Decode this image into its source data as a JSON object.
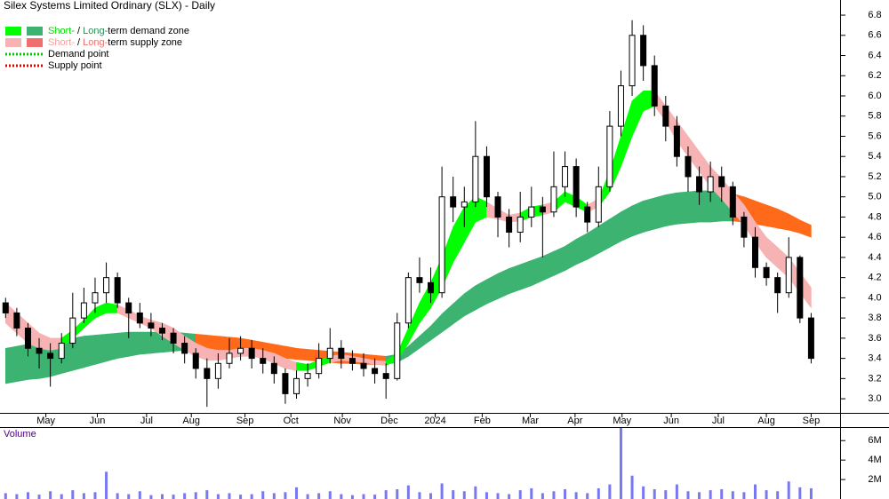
{
  "chart_data": {
    "type": "candlestick",
    "title": "Silex Systems Limited Ordinary (SLX) - Daily",
    "legend": [
      {
        "swatches": [
          "#00ff00",
          "#3cb371"
        ],
        "parts": [
          {
            "text": "Short-",
            "color": "#00dd00"
          },
          {
            "text": " / "
          },
          {
            "text": "Long-",
            "color": "#2e8b57"
          },
          {
            "text": "term demand zone"
          }
        ]
      },
      {
        "swatches": [
          "#f7b3b3",
          "#f07070"
        ],
        "parts": [
          {
            "text": "Short-",
            "color": "#f4a0a0"
          },
          {
            "text": " / "
          },
          {
            "text": "Long-",
            "color": "#f07070"
          },
          {
            "text": "term supply zone"
          }
        ]
      },
      {
        "line_color": "#00cc00",
        "parts": [
          {
            "text": "Demand point"
          }
        ]
      },
      {
        "line_color": "#dd0000",
        "parts": [
          {
            "text": "Supply point"
          }
        ]
      }
    ],
    "xlim": [
      -0.5,
      73
    ],
    "xticks": [
      {
        "value": 3.6,
        "label": "May"
      },
      {
        "value": 8.2,
        "label": "Jun"
      },
      {
        "value": 12.6,
        "label": "Jul"
      },
      {
        "value": 16.6,
        "label": "Aug"
      },
      {
        "value": 21.4,
        "label": "Sep"
      },
      {
        "value": 25.5,
        "label": "Oct"
      },
      {
        "value": 30.1,
        "label": "Nov"
      },
      {
        "value": 34.3,
        "label": "Dec"
      },
      {
        "value": 38.4,
        "label": "2024"
      },
      {
        "value": 42.6,
        "label": "Feb"
      },
      {
        "value": 46.9,
        "label": "Mar"
      },
      {
        "value": 50.9,
        "label": "Apr"
      },
      {
        "value": 55.1,
        "label": "May"
      },
      {
        "value": 59.5,
        "label": "Jun"
      },
      {
        "value": 63.7,
        "label": "Jul"
      },
      {
        "value": 68,
        "label": "Aug"
      },
      {
        "value": 72,
        "label": "Sep"
      }
    ],
    "ylim": [
      2.86,
      6.95
    ],
    "yticks": [
      {
        "value": 3,
        "label": "3.0"
      },
      3.2,
      3.4,
      3.6,
      3.8,
      {
        "value": 4,
        "label": "4.0"
      },
      4.2,
      4.4,
      4.6,
      4.8,
      {
        "value": 5,
        "label": "5.0"
      },
      5.2,
      5.4,
      5.6,
      5.8,
      {
        "value": 6,
        "label": "6.0"
      },
      6.2,
      6.4,
      6.6,
      6.8
    ],
    "candle_up_color": "#ffffff",
    "candle_down_color": "#000000",
    "open": [
      3.95,
      3.85,
      3.7,
      3.5,
      3.45,
      3.4,
      3.55,
      3.8,
      3.95,
      4.05,
      4.2,
      3.95,
      3.85,
      3.75,
      3.7,
      3.65,
      3.55,
      3.45,
      3.3,
      3.2,
      3.35,
      3.45,
      3.5,
      3.4,
      3.35,
      3.25,
      3.05,
      3.2,
      3.25,
      3.4,
      3.5,
      3.4,
      3.35,
      3.3,
      3.25,
      3.2,
      3.75,
      4.2,
      4.15,
      4.05,
      5.0,
      4.9,
      4.95,
      5.4,
      5.0,
      4.8,
      4.65,
      4.8,
      4.9,
      4.85,
      5.1,
      5.3,
      4.9,
      4.75,
      5.1,
      5.7,
      6.1,
      6.6,
      6.3,
      5.9,
      5.7,
      5.4,
      5.2,
      5.05,
      5.2,
      5.1,
      4.8,
      4.6,
      4.3,
      4.2,
      4.05,
      4.4,
      3.8
    ],
    "high": [
      4.0,
      3.9,
      3.75,
      3.6,
      3.55,
      3.65,
      4.05,
      4.1,
      4.2,
      4.35,
      4.25,
      4.0,
      3.95,
      3.85,
      3.75,
      3.7,
      3.62,
      3.5,
      3.4,
      3.45,
      3.6,
      3.62,
      3.58,
      3.5,
      3.42,
      3.3,
      3.28,
      3.35,
      3.55,
      3.7,
      3.58,
      3.48,
      3.45,
      3.4,
      3.35,
      3.85,
      4.25,
      4.4,
      4.3,
      5.3,
      5.2,
      5.1,
      5.75,
      5.5,
      5.05,
      4.88,
      5.05,
      5.1,
      5.0,
      5.45,
      5.45,
      5.38,
      4.95,
      5.3,
      5.85,
      6.25,
      6.75,
      6.7,
      6.4,
      6.0,
      5.8,
      5.5,
      5.3,
      5.35,
      5.3,
      5.15,
      4.85,
      4.7,
      4.35,
      4.25,
      4.6,
      4.42,
      3.85
    ],
    "low": [
      3.8,
      3.62,
      3.42,
      3.3,
      3.12,
      3.35,
      3.5,
      3.75,
      3.85,
      3.95,
      3.9,
      3.6,
      3.7,
      3.62,
      3.58,
      3.45,
      3.35,
      3.2,
      2.92,
      3.1,
      3.3,
      3.38,
      3.3,
      3.25,
      3.15,
      2.95,
      3.0,
      3.12,
      3.2,
      3.35,
      3.3,
      3.28,
      3.22,
      3.15,
      3.0,
      3.18,
      3.7,
      4.05,
      3.95,
      4.0,
      4.75,
      4.7,
      4.9,
      4.9,
      4.6,
      4.5,
      4.55,
      4.7,
      4.4,
      4.8,
      5.0,
      4.8,
      4.65,
      4.7,
      5.05,
      5.6,
      6.0,
      6.15,
      5.8,
      5.55,
      5.3,
      5.05,
      4.92,
      4.95,
      4.95,
      4.72,
      4.5,
      4.2,
      4.12,
      3.85,
      4.0,
      3.75,
      3.35
    ],
    "close": [
      3.85,
      3.7,
      3.5,
      3.45,
      3.4,
      3.55,
      3.8,
      3.95,
      4.05,
      4.2,
      3.95,
      3.85,
      3.75,
      3.7,
      3.65,
      3.55,
      3.45,
      3.3,
      3.2,
      3.35,
      3.45,
      3.5,
      3.4,
      3.35,
      3.25,
      3.05,
      3.2,
      3.25,
      3.4,
      3.5,
      3.4,
      3.35,
      3.3,
      3.25,
      3.2,
      3.75,
      4.2,
      4.15,
      4.05,
      5.0,
      4.9,
      4.95,
      5.4,
      5.0,
      4.8,
      4.65,
      4.8,
      4.9,
      4.85,
      5.1,
      5.3,
      4.9,
      4.75,
      5.1,
      5.7,
      6.1,
      6.6,
      6.3,
      5.9,
      5.7,
      5.4,
      5.2,
      5.05,
      5.2,
      5.1,
      4.8,
      4.6,
      4.3,
      4.2,
      4.05,
      4.4,
      3.8,
      3.4
    ],
    "zones": [
      {
        "lower": [
          3.15,
          3.17,
          3.19,
          3.2,
          3.22,
          3.25,
          3.28,
          3.31,
          3.34,
          3.37,
          3.4,
          3.42,
          3.44,
          3.45,
          3.46,
          3.47,
          3.48,
          3.48,
          3.47,
          3.46,
          3.45,
          3.44,
          3.43,
          3.42,
          3.41,
          3.4,
          3.39,
          3.38,
          3.37,
          3.36,
          3.35,
          3.35,
          3.34,
          3.34,
          3.34,
          3.36,
          3.42,
          3.5,
          3.58,
          3.66,
          3.74,
          3.82,
          3.88,
          3.94,
          3.99,
          4.04,
          4.08,
          4.12,
          4.17,
          4.22,
          4.27,
          4.33,
          4.38,
          4.44,
          4.5,
          4.56,
          4.61,
          4.65,
          4.68,
          4.71,
          4.73,
          4.74,
          4.75,
          4.75,
          4.76,
          4.76,
          4.75,
          4.73,
          4.71,
          4.69,
          4.67,
          4.64,
          4.6
        ],
        "upper": [
          3.5,
          3.52,
          3.54,
          3.55,
          3.56,
          3.58,
          3.6,
          3.62,
          3.63,
          3.64,
          3.65,
          3.66,
          3.66,
          3.66,
          3.66,
          3.66,
          3.65,
          3.64,
          3.63,
          3.62,
          3.61,
          3.6,
          3.58,
          3.56,
          3.54,
          3.52,
          3.5,
          3.49,
          3.48,
          3.47,
          3.46,
          3.45,
          3.44,
          3.43,
          3.42,
          3.44,
          3.52,
          3.62,
          3.72,
          3.84,
          3.94,
          4.04,
          4.12,
          4.18,
          4.24,
          4.29,
          4.33,
          4.37,
          4.41,
          4.46,
          4.51,
          4.58,
          4.64,
          4.71,
          4.78,
          4.85,
          4.91,
          4.96,
          4.99,
          5.02,
          5.04,
          5.05,
          5.06,
          5.06,
          5.05,
          5.03,
          5.0,
          4.96,
          4.92,
          4.88,
          4.83,
          4.77,
          4.72
        ],
        "colors": [
          "#3cb371",
          "#3cb371",
          "#3cb371",
          "#3cb371",
          "#3cb371",
          "#3cb371",
          "#3cb371",
          "#3cb371",
          "#3cb371",
          "#3cb371",
          "#3cb371",
          "#3cb371",
          "#3cb371",
          "#3cb371",
          "#3cb371",
          "#3cb371",
          "#3cb371",
          "#ff6a1a",
          "#ff6a1a",
          "#ff6a1a",
          "#ff6a1a",
          "#ff6a1a",
          "#ff6a1a",
          "#ff6a1a",
          "#ff6a1a",
          "#ff6a1a",
          "#ff6a1a",
          "#ff6a1a",
          "#ff6a1a",
          "#ff6a1a",
          "#ff6a1a",
          "#ff6a1a",
          "#ff6a1a",
          "#ff6a1a",
          "#3cb371",
          "#3cb371",
          "#3cb371",
          "#3cb371",
          "#3cb371",
          "#3cb371",
          "#3cb371",
          "#3cb371",
          "#3cb371",
          "#3cb371",
          "#3cb371",
          "#3cb371",
          "#3cb371",
          "#3cb371",
          "#3cb371",
          "#3cb371",
          "#3cb371",
          "#3cb371",
          "#3cb371",
          "#3cb371",
          "#3cb371",
          "#3cb371",
          "#3cb371",
          "#3cb371",
          "#3cb371",
          "#3cb371",
          "#3cb371",
          "#3cb371",
          "#3cb371",
          "#3cb371",
          "#3cb371",
          "#ff6a1a",
          "#ff6a1a",
          "#ff6a1a",
          "#ff6a1a",
          "#ff6a1a",
          "#ff6a1a",
          "#ff6a1a",
          "#ff6a1a"
        ]
      },
      {
        "lower": [
          3.75,
          3.65,
          3.55,
          3.5,
          3.48,
          3.5,
          3.6,
          3.7,
          3.8,
          3.85,
          3.85,
          3.8,
          3.75,
          3.7,
          3.62,
          3.55,
          3.48,
          3.42,
          3.38,
          3.38,
          3.4,
          3.42,
          3.42,
          3.4,
          3.35,
          3.3,
          3.28,
          3.28,
          3.32,
          3.36,
          3.38,
          3.37,
          3.36,
          3.34,
          3.33,
          3.38,
          3.55,
          3.75,
          3.9,
          4.1,
          4.35,
          4.55,
          4.75,
          4.8,
          4.78,
          4.75,
          4.76,
          4.8,
          4.82,
          4.85,
          4.95,
          4.9,
          4.85,
          4.9,
          5.05,
          5.3,
          5.6,
          5.85,
          5.9,
          5.75,
          5.55,
          5.4,
          5.25,
          5.1,
          4.98,
          4.85,
          4.72,
          4.55,
          4.4,
          4.3,
          4.2,
          4.05,
          3.9
        ],
        "upper": [
          3.95,
          3.85,
          3.75,
          3.65,
          3.6,
          3.6,
          3.68,
          3.78,
          3.9,
          3.95,
          3.93,
          3.88,
          3.82,
          3.78,
          3.75,
          3.7,
          3.62,
          3.55,
          3.5,
          3.48,
          3.48,
          3.5,
          3.5,
          3.48,
          3.45,
          3.4,
          3.36,
          3.34,
          3.38,
          3.42,
          3.44,
          3.42,
          3.4,
          3.38,
          3.37,
          3.45,
          3.7,
          3.95,
          4.15,
          4.4,
          4.7,
          4.9,
          5.0,
          4.95,
          4.88,
          4.82,
          4.84,
          4.9,
          4.92,
          4.95,
          5.05,
          5.0,
          4.92,
          4.98,
          5.25,
          5.6,
          5.95,
          6.05,
          6.05,
          5.9,
          5.75,
          5.6,
          5.45,
          5.3,
          5.18,
          5.05,
          4.92,
          4.75,
          4.6,
          4.5,
          4.4,
          4.25,
          4.1
        ],
        "colors": [
          "#f7b3b3",
          "#f7b3b3",
          "#f7b3b3",
          "#f7b3b3",
          "#f7b3b3",
          "#00ff00",
          "#00ff00",
          "#00ff00",
          "#00ff00",
          "#00ff00",
          "#f7b3b3",
          "#f7b3b3",
          "#f7b3b3",
          "#f7b3b3",
          "#f7b3b3",
          "#f7b3b3",
          "#f7b3b3",
          "#f7b3b3",
          "#f7b3b3",
          "#f7b3b3",
          "#f7b3b3",
          "#f7b3b3",
          "#f7b3b3",
          "#f7b3b3",
          "#f7b3b3",
          "#f7b3b3",
          "#00ff00",
          "#00ff00",
          "#00ff00",
          "#f7b3b3",
          "#f7b3b3",
          "#f7b3b3",
          "#f7b3b3",
          "#f7b3b3",
          "#00ff00",
          "#00ff00",
          "#00ff00",
          "#00ff00",
          "#00ff00",
          "#00ff00",
          "#00ff00",
          "#00ff00",
          "#00ff00",
          "#f7b3b3",
          "#f7b3b3",
          "#f7b3b3",
          "#00ff00",
          "#00ff00",
          "#f7b3b3",
          "#00ff00",
          "#00ff00",
          "#00ff00",
          "#f7b3b3",
          "#00ff00",
          "#00ff00",
          "#00ff00",
          "#00ff00",
          "#00ff00",
          "#f7b3b3",
          "#f7b3b3",
          "#f7b3b3",
          "#f7b3b3",
          "#f7b3b3",
          "#f7b3b3",
          "#f7b3b3",
          "#f7b3b3",
          "#f7b3b3",
          "#f7b3b3",
          "#f7b3b3",
          "#f7b3b3",
          "#f7b3b3",
          "#f7b3b3",
          "#f7b3b3"
        ]
      }
    ],
    "volume": {
      "label": "Volume",
      "color": "#7878f0",
      "ylim": [
        0,
        7300000
      ],
      "yticks": [
        {
          "value": 2000000,
          "label": "2M"
        },
        {
          "value": 4000000,
          "label": "4M"
        },
        {
          "value": 6000000,
          "label": "6M"
        }
      ],
      "values": [
        600000,
        500000,
        700000,
        450000,
        800000,
        500000,
        900000,
        600000,
        700000,
        2800000,
        600000,
        500000,
        800000,
        400000,
        500000,
        450000,
        600000,
        700000,
        900000,
        500000,
        600000,
        450000,
        500000,
        800000,
        600000,
        700000,
        1200000,
        500000,
        600000,
        800000,
        500000,
        400000,
        500000,
        450000,
        900000,
        1000000,
        1400000,
        700000,
        600000,
        1600000,
        900000,
        800000,
        1300000,
        700000,
        600000,
        500000,
        900000,
        1100000,
        600000,
        800000,
        1000000,
        700000,
        600000,
        1100000,
        1500000,
        7300000,
        2400000,
        1300000,
        1000000,
        900000,
        1500000,
        800000,
        700000,
        900000,
        1000000,
        800000,
        700000,
        1500000,
        900000,
        800000,
        1800000,
        1200000,
        1100000
      ]
    }
  }
}
